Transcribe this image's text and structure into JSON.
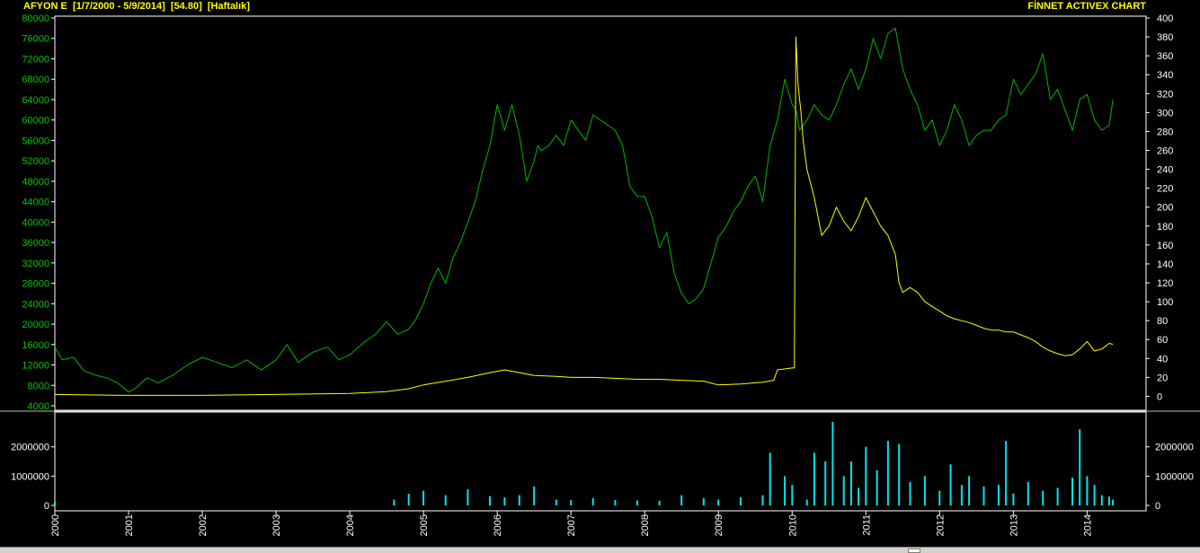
{
  "header": {
    "symbol": "AFYON E",
    "date_range": "[1/7/2000 - 5/9/2014]",
    "last_price": "[54.80]",
    "period": "[Haftalık]",
    "brand": "FİNNET ACTIVEX CHART"
  },
  "colors": {
    "background": "#000000",
    "frame": "#ffffff",
    "index_line": "#00b400",
    "price_line": "#ffff00",
    "volume_bars": "#00e5ee",
    "left_axis_text": "#00c800",
    "right_axis_text": "#ffffff"
  },
  "chart_data": [
    {
      "type": "line",
      "panel": "price",
      "x_ticks": [
        "2000",
        "2001",
        "2002",
        "2003",
        "2004",
        "2005",
        "2006",
        "2007",
        "2008",
        "2009",
        "2010",
        "2011",
        "2012",
        "2013",
        "2014"
      ],
      "xlim": [
        2000.0,
        2014.8
      ],
      "y_left": {
        "ticks": [
          4000,
          8000,
          12000,
          16000,
          20000,
          24000,
          28000,
          32000,
          36000,
          40000,
          44000,
          48000,
          52000,
          56000,
          60000,
          64000,
          68000,
          72000,
          76000,
          80000
        ],
        "lim": [
          4000,
          80000
        ]
      },
      "y_right": {
        "ticks": [
          0,
          20,
          40,
          60,
          80,
          100,
          120,
          140,
          160,
          180,
          200,
          220,
          240,
          260,
          280,
          300,
          320,
          340,
          360,
          380,
          400
        ],
        "lim": [
          -10,
          400
        ]
      },
      "series": [
        {
          "axis": "left",
          "color": "#00b400",
          "x": [
            2000.0,
            2000.1,
            2000.25,
            2000.4,
            2000.55,
            2000.7,
            2000.85,
            2001.0,
            2001.1,
            2001.25,
            2001.4,
            2001.6,
            2001.8,
            2002.0,
            2002.2,
            2002.4,
            2002.6,
            2002.8,
            2003.0,
            2003.15,
            2003.3,
            2003.5,
            2003.7,
            2003.85,
            2004.0,
            2004.2,
            2004.35,
            2004.5,
            2004.65,
            2004.8,
            2004.9,
            2005.0,
            2005.1,
            2005.2,
            2005.3,
            2005.4,
            2005.5,
            2005.6,
            2005.7,
            2005.8,
            2005.9,
            2006.0,
            2006.1,
            2006.2,
            2006.3,
            2006.4,
            2006.5,
            2006.55,
            2006.6,
            2006.7,
            2006.8,
            2006.9,
            2007.0,
            2007.1,
            2007.2,
            2007.3,
            2007.4,
            2007.5,
            2007.6,
            2007.7,
            2007.8,
            2007.9,
            2008.0,
            2008.1,
            2008.2,
            2008.3,
            2008.4,
            2008.5,
            2008.6,
            2008.7,
            2008.8,
            2008.9,
            2009.0,
            2009.1,
            2009.2,
            2009.3,
            2009.4,
            2009.5,
            2009.6,
            2009.7,
            2009.8,
            2009.9,
            2010.0,
            2010.05,
            2010.1,
            2010.2,
            2010.3,
            2010.4,
            2010.5,
            2010.6,
            2010.7,
            2010.8,
            2010.9,
            2011.0,
            2011.1,
            2011.2,
            2011.3,
            2011.4,
            2011.5,
            2011.6,
            2011.7,
            2011.8,
            2011.9,
            2012.0,
            2012.1,
            2012.2,
            2012.3,
            2012.4,
            2012.5,
            2012.6,
            2012.7,
            2012.8,
            2012.9,
            2013.0,
            2013.1,
            2013.2,
            2013.3,
            2013.4,
            2013.5,
            2013.6,
            2013.7,
            2013.8,
            2013.9,
            2014.0,
            2014.1,
            2014.2,
            2014.3,
            2014.35
          ],
          "y": [
            15500,
            13000,
            13500,
            10800,
            10000,
            9500,
            8500,
            6700,
            7500,
            9500,
            8500,
            10000,
            12000,
            13500,
            12500,
            11500,
            13000,
            11000,
            13000,
            16000,
            12500,
            14500,
            15500,
            13000,
            14000,
            16500,
            18000,
            20500,
            18000,
            19000,
            21000,
            24000,
            28000,
            31000,
            28000,
            33000,
            36000,
            40000,
            44000,
            50000,
            55000,
            63000,
            58000,
            63000,
            57000,
            48000,
            52000,
            55000,
            54000,
            55000,
            57000,
            55000,
            60000,
            58000,
            56000,
            61000,
            60000,
            59000,
            58000,
            55000,
            47000,
            45000,
            45000,
            41000,
            35000,
            38000,
            30000,
            26000,
            24000,
            25000,
            27000,
            32000,
            37000,
            39000,
            42000,
            44000,
            47000,
            49000,
            44000,
            55000,
            60000,
            68000,
            63000,
            62000,
            58000,
            60000,
            63000,
            61000,
            60000,
            63000,
            67000,
            70000,
            66000,
            70000,
            76000,
            72000,
            77000,
            78000,
            70000,
            66000,
            63000,
            58000,
            60000,
            55000,
            58000,
            63000,
            60000,
            55000,
            57000,
            58000,
            58000,
            60000,
            61000,
            68000,
            65000,
            67000,
            69000,
            73000,
            64000,
            66000,
            62000,
            58000,
            64000,
            65000,
            60000,
            58000,
            59000,
            64000
          ]
        },
        {
          "axis": "right",
          "color": "#ffff00",
          "x": [
            2000.0,
            2001.0,
            2002.0,
            2003.0,
            2004.0,
            2004.5,
            2004.8,
            2005.0,
            2005.3,
            2005.6,
            2005.9,
            2006.1,
            2006.3,
            2006.5,
            2006.8,
            2007.0,
            2007.3,
            2007.6,
            2007.9,
            2008.2,
            2008.5,
            2008.8,
            2009.0,
            2009.3,
            2009.6,
            2009.75,
            2009.8,
            2010.0,
            2010.03,
            2010.05,
            2010.08,
            2010.12,
            2010.15,
            2010.2,
            2010.3,
            2010.4,
            2010.5,
            2010.6,
            2010.7,
            2010.8,
            2010.9,
            2011.0,
            2011.1,
            2011.2,
            2011.3,
            2011.4,
            2011.45,
            2011.5,
            2011.6,
            2011.7,
            2011.8,
            2011.9,
            2012.0,
            2012.1,
            2012.2,
            2012.3,
            2012.4,
            2012.5,
            2012.6,
            2012.7,
            2012.8,
            2012.9,
            2013.0,
            2013.1,
            2013.2,
            2013.3,
            2013.4,
            2013.5,
            2013.6,
            2013.7,
            2013.8,
            2013.9,
            2014.0,
            2014.1,
            2014.2,
            2014.3,
            2014.35
          ],
          "y": [
            2,
            1,
            1,
            2,
            3,
            5,
            8,
            12,
            16,
            20,
            25,
            28,
            25,
            22,
            21,
            20,
            20,
            19,
            18,
            18,
            17,
            16,
            12,
            13,
            15,
            17,
            28,
            30,
            30,
            380,
            330,
            300,
            270,
            240,
            210,
            170,
            180,
            200,
            185,
            175,
            190,
            210,
            195,
            180,
            170,
            150,
            120,
            110,
            115,
            110,
            100,
            95,
            90,
            85,
            82,
            80,
            78,
            75,
            72,
            70,
            70,
            68,
            68,
            65,
            62,
            58,
            52,
            48,
            45,
            43,
            44,
            50,
            58,
            48,
            50,
            56,
            55
          ]
        }
      ]
    },
    {
      "type": "bar",
      "panel": "volume",
      "color": "#00e5ee",
      "y_ticks": [
        0,
        1000000,
        2000000
      ],
      "ylim": [
        0,
        2850000
      ],
      "x": [
        2000.0,
        2004.6,
        2004.8,
        2005.0,
        2005.3,
        2005.6,
        2005.9,
        2006.1,
        2006.3,
        2006.5,
        2006.8,
        2007.0,
        2007.3,
        2007.6,
        2007.9,
        2008.2,
        2008.5,
        2008.8,
        2009.0,
        2009.3,
        2009.6,
        2009.7,
        2009.9,
        2010.0,
        2010.2,
        2010.3,
        2010.45,
        2010.55,
        2010.7,
        2010.8,
        2010.9,
        2011.0,
        2011.15,
        2011.3,
        2011.45,
        2011.6,
        2011.8,
        2012.0,
        2012.15,
        2012.3,
        2012.4,
        2012.6,
        2012.8,
        2012.9,
        2013.0,
        2013.2,
        2013.4,
        2013.6,
        2013.8,
        2013.9,
        2014.0,
        2014.1,
        2014.2,
        2014.3,
        2014.35
      ],
      "values": [
        120000,
        200000,
        400000,
        500000,
        350000,
        550000,
        320000,
        280000,
        350000,
        650000,
        200000,
        180000,
        250000,
        180000,
        170000,
        160000,
        350000,
        250000,
        200000,
        280000,
        350000,
        1800000,
        1000000,
        700000,
        200000,
        1800000,
        1500000,
        2850000,
        1000000,
        1500000,
        600000,
        2000000,
        1200000,
        2200000,
        2100000,
        800000,
        1000000,
        500000,
        1400000,
        700000,
        1000000,
        650000,
        700000,
        2200000,
        400000,
        800000,
        500000,
        600000,
        950000,
        2600000,
        1000000,
        700000,
        350000,
        300000,
        200000
      ]
    }
  ]
}
